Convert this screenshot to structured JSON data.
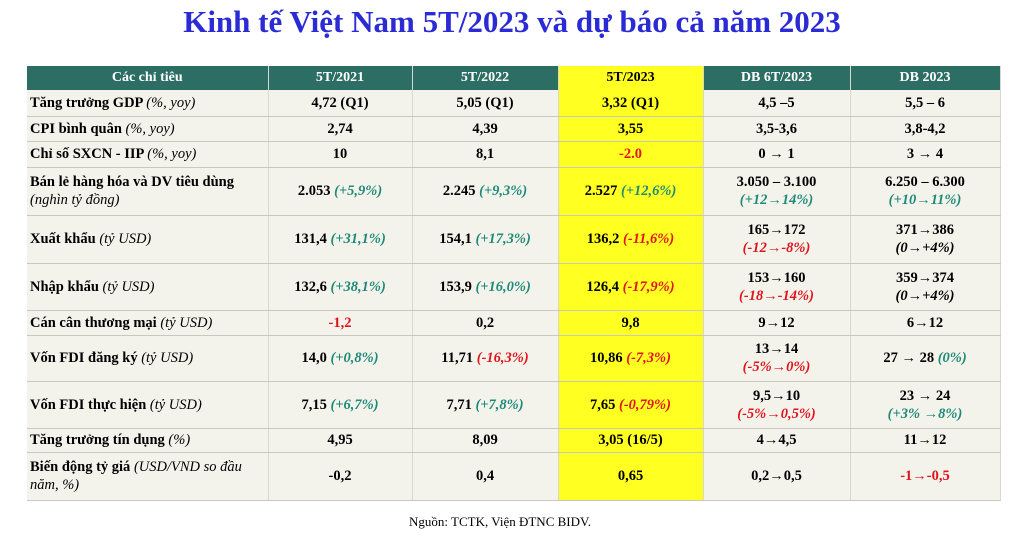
{
  "title": "Kinh tế Việt Nam 5T/2023 và dự báo cả năm 2023",
  "table": {
    "columns": [
      "Các chỉ tiêu",
      "5T/2021",
      "5T/2022",
      "5T/2023",
      "DB 6T/2023",
      "DB 2023"
    ],
    "highlight_column": 3,
    "rows": [
      {
        "label": "Tăng trưởng GDP",
        "unit": "(%, yoy)",
        "cells": [
          {
            "text": "4,72 (Q1)"
          },
          {
            "text": "5,05 (Q1)"
          },
          {
            "text": "3,32 (Q1)"
          },
          {
            "text": "4,5 –5"
          },
          {
            "text": "5,5 – 6"
          }
        ]
      },
      {
        "label": "CPI bình quân",
        "unit": "(%, yoy)",
        "cells": [
          {
            "text": "2,74"
          },
          {
            "text": "4,39"
          },
          {
            "text": "3,55"
          },
          {
            "text": "3,5-3,6"
          },
          {
            "text": "3,8-4,2"
          }
        ]
      },
      {
        "label": "Chỉ số SXCN - IIP",
        "unit": "(%, yoy)",
        "cells": [
          {
            "text": "10"
          },
          {
            "text": "8,1"
          },
          {
            "text": "-2.0",
            "tone": "red"
          },
          {
            "text": "0 → 1"
          },
          {
            "text": "3 → 4"
          }
        ]
      },
      {
        "label": "Bán lẻ hàng hóa và DV tiêu dùng",
        "unit": "(nghìn tỷ đồng)",
        "unit_layout": "stack",
        "cells": [
          {
            "text": "2.053",
            "note": "(+5,9%)",
            "note_tone": "green"
          },
          {
            "text": "2.245",
            "note": "(+9,3%)",
            "note_tone": "green"
          },
          {
            "text": "2.527",
            "note": "(+12,6%)",
            "note_tone": "green"
          },
          {
            "text": "3.050 – 3.100",
            "note": "(+12→14%)",
            "note_tone": "green",
            "layout": "stack"
          },
          {
            "text": "6.250 – 6.300",
            "note": "(+10→11%)",
            "note_tone": "green",
            "layout": "stack"
          }
        ]
      },
      {
        "label": "Xuất khẩu",
        "unit": "(tỷ USD)",
        "cells": [
          {
            "text": "131,4",
            "note": "(+31,1%)",
            "note_tone": "green"
          },
          {
            "text": "154,1",
            "note": "(+17,3%)",
            "note_tone": "green"
          },
          {
            "text": "136,2",
            "note": "(-11,6%)",
            "note_tone": "red"
          },
          {
            "text": "165→172",
            "note": "(-12→-8%)",
            "note_tone": "red",
            "layout": "stack"
          },
          {
            "text": "371→386",
            "note": "(0→+4%)",
            "layout": "stack"
          }
        ]
      },
      {
        "label": "Nhập khẩu",
        "unit": "(tỷ USD)",
        "cells": [
          {
            "text": "132,6",
            "note": "(+38,1%)",
            "note_tone": "green"
          },
          {
            "text": "153,9",
            "note": "(+16,0%)",
            "note_tone": "green"
          },
          {
            "text": "126,4",
            "note": "(-17,9%)",
            "note_tone": "red"
          },
          {
            "text": "153→160",
            "note": "(-18→-14%)",
            "note_tone": "red",
            "layout": "stack"
          },
          {
            "text": "359→374",
            "note": "(0→+4%)",
            "layout": "stack"
          }
        ]
      },
      {
        "label": "Cán cân thương mại",
        "unit": "(tỷ USD)",
        "cells": [
          {
            "text": "-1,2",
            "tone": "red"
          },
          {
            "text": "0,2"
          },
          {
            "text": "9,8"
          },
          {
            "text": "9→12"
          },
          {
            "text": "6→12"
          }
        ]
      },
      {
        "label": "Vốn FDI đăng ký",
        "unit": "(tỷ USD)",
        "cells": [
          {
            "text": "14,0",
            "note": "(+0,8%)",
            "note_tone": "green"
          },
          {
            "text": "11,71",
            "note": "(-16,3%)",
            "note_tone": "red"
          },
          {
            "text": "10,86",
            "note": "(-7,3%)",
            "note_tone": "red"
          },
          {
            "text": "13→14",
            "note": "(-5%→0%)",
            "note_tone": "red",
            "layout": "stack"
          },
          {
            "text": "27 → 28",
            "note": "(0%)",
            "note_tone": "green"
          }
        ]
      },
      {
        "label": "Vốn FDI thực hiện",
        "unit": "(tỷ USD)",
        "cells": [
          {
            "text": "7,15",
            "note": "(+6,7%)",
            "note_tone": "green"
          },
          {
            "text": "7,71",
            "note": "(+7,8%)",
            "note_tone": "green"
          },
          {
            "text": "7,65",
            "note": "(-0,79%)",
            "note_tone": "red"
          },
          {
            "text": "9,5→10",
            "note": "(-5%→0,5%)",
            "note_tone": "red",
            "layout": "stack"
          },
          {
            "text": "23 → 24",
            "note": "(+3% →8%)",
            "note_tone": "green",
            "layout": "stack"
          }
        ]
      },
      {
        "label": "Tăng trưởng tín dụng",
        "unit": "(%)",
        "cells": [
          {
            "text": "4,95"
          },
          {
            "text": "8,09"
          },
          {
            "text": "3,05 (16/5)"
          },
          {
            "text": "4→4,5"
          },
          {
            "text": "11→12"
          }
        ]
      },
      {
        "label": "Biến động tỷ giá",
        "unit": "(USD/VND so đầu năm, %)",
        "unit_layout": "wrap",
        "cells": [
          {
            "text": "-0,2"
          },
          {
            "text": "0,4"
          },
          {
            "text": "0,65"
          },
          {
            "text": "0,2→0,5"
          },
          {
            "text": "-1→-0,5",
            "tone": "red"
          }
        ]
      }
    ]
  },
  "source": "Nguồn: TCTK, Viện ĐTNC BIDV."
}
